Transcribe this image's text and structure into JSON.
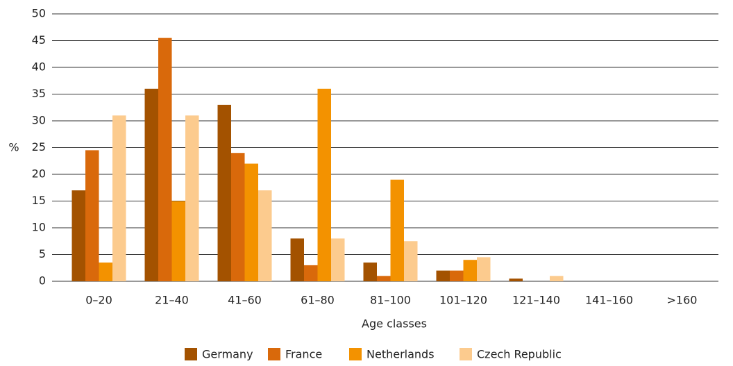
{
  "chart_data": {
    "type": "bar",
    "categories": [
      "0–20",
      "21–40",
      "41–60",
      "61–80",
      "81–100",
      "101–120",
      "121–140",
      "141–160",
      ">160"
    ],
    "series": [
      {
        "name": "Germany",
        "color": "#a35200",
        "values": [
          17,
          36,
          33,
          8,
          3.5,
          2,
          0.5,
          0,
          0
        ]
      },
      {
        "name": "France",
        "color": "#d9690b",
        "values": [
          24.5,
          45.5,
          24,
          3,
          1,
          2,
          0,
          0,
          0
        ]
      },
      {
        "name": "Netherlands",
        "color": "#f39200",
        "values": [
          3.5,
          15,
          22,
          36,
          19,
          4,
          0,
          0,
          0
        ]
      },
      {
        "name": "Czech Republic",
        "color": "#fccb8e",
        "values": [
          31,
          31,
          17,
          8,
          7.5,
          4.5,
          1,
          0,
          0
        ]
      }
    ],
    "ylabel": "%",
    "xlabel": "Age classes",
    "ylim": [
      0,
      50
    ],
    "yticks": [
      0,
      5,
      10,
      15,
      20,
      25,
      30,
      35,
      40,
      45,
      50
    ],
    "grid": true,
    "legend": "bottom"
  }
}
